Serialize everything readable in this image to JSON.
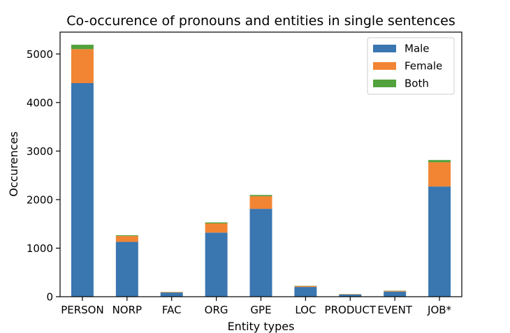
{
  "chart_data": {
    "type": "bar",
    "stacked": true,
    "title": "Co-occurence of pronouns and entities in single sentences",
    "xlabel": "Entity types",
    "ylabel": "Occurences",
    "categories": [
      "PERSON",
      "NORP",
      "FAC",
      "ORG",
      "GPE",
      "LOC",
      "PRODUCT",
      "EVENT",
      "JOB*"
    ],
    "series": [
      {
        "name": "Male",
        "color": "#3a76b0",
        "values": [
          4400,
          1130,
          85,
          1320,
          1810,
          200,
          45,
          105,
          2270
        ]
      },
      {
        "name": "Female",
        "color": "#f28533",
        "values": [
          700,
          120,
          10,
          190,
          260,
          20,
          8,
          15,
          500
        ]
      },
      {
        "name": "Both",
        "color": "#51a13c",
        "values": [
          90,
          15,
          3,
          20,
          25,
          5,
          2,
          5,
          45
        ]
      }
    ],
    "ylim": [
      0,
      5450
    ],
    "yticks": [
      0,
      1000,
      2000,
      3000,
      4000,
      5000
    ],
    "grid": false,
    "legend_position": "top-right"
  }
}
